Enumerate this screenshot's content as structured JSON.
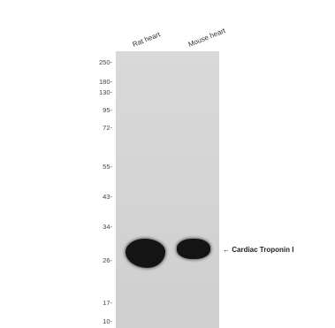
{
  "lanes": [
    {
      "label": "Rat heart"
    },
    {
      "label": "Mouse heart"
    }
  ],
  "markers": [
    "250-",
    "180-",
    "130-",
    "95-",
    "72-",
    "55-",
    "43-",
    "34-",
    "26-",
    "17-",
    "10-"
  ],
  "annotation": {
    "arrow": "←",
    "label": "Cardiac Troponin I"
  },
  "colors": {
    "membrane": "#d4d4d4",
    "band": "#141414"
  }
}
